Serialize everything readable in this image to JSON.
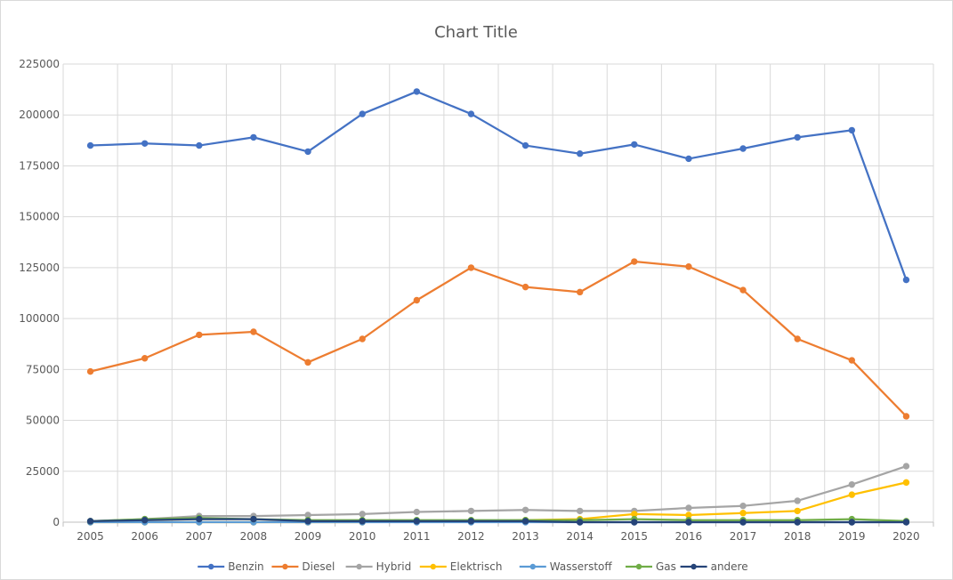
{
  "chart_data": {
    "type": "line",
    "title": "Chart Title",
    "xlabel": "",
    "ylabel": "",
    "ylim": [
      0,
      225000
    ],
    "yticks": [
      "0",
      "25000",
      "50000",
      "75000",
      "100000",
      "125000",
      "150000",
      "175000",
      "200000",
      "225000"
    ],
    "grid": true,
    "legend_position": "bottom",
    "categories": [
      "2005",
      "2006",
      "2007",
      "2008",
      "2009",
      "2010",
      "2011",
      "2012",
      "2013",
      "2014",
      "2015",
      "2016",
      "2017",
      "2018",
      "2019",
      "2020"
    ],
    "series": [
      {
        "name": "Benzin",
        "color": "#4472C4",
        "values": [
          185000,
          186000,
          185000,
          189000,
          182000,
          200500,
          211500,
          200500,
          185000,
          181000,
          185500,
          178500,
          183500,
          189000,
          192500,
          119000
        ]
      },
      {
        "name": "Diesel",
        "color": "#ED7D31",
        "values": [
          74000,
          80500,
          92000,
          93500,
          78500,
          90000,
          109000,
          125000,
          115500,
          113000,
          128000,
          125500,
          114000,
          90000,
          79500,
          52000
        ]
      },
      {
        "name": "Hybrid",
        "color": "#A5A5A5",
        "values": [
          500,
          1500,
          3000,
          3000,
          3500,
          4000,
          5000,
          5500,
          6000,
          5500,
          5500,
          7000,
          8000,
          10500,
          18500,
          27500
        ]
      },
      {
        "name": "Elektrisch",
        "color": "#FFC000",
        "values": [
          0,
          0,
          0,
          0,
          0,
          0,
          500,
          500,
          1000,
          1500,
          4000,
          3500,
          4500,
          5500,
          13500,
          19500
        ]
      },
      {
        "name": "Wasserstoff",
        "color": "#5B9BD5",
        "values": [
          0,
          0,
          0,
          0,
          0,
          0,
          0,
          0,
          0,
          0,
          0,
          0,
          0,
          0,
          0,
          0
        ]
      },
      {
        "name": "Gas",
        "color": "#70AD47",
        "values": [
          500,
          1500,
          2000,
          1500,
          1000,
          1000,
          1000,
          1000,
          1000,
          1000,
          1500,
          1000,
          1000,
          1000,
          1500,
          500
        ]
      },
      {
        "name": "andere",
        "color": "#264478",
        "values": [
          500,
          1000,
          1500,
          1500,
          500,
          500,
          500,
          500,
          500,
          0,
          0,
          0,
          0,
          0,
          0,
          0
        ]
      }
    ]
  }
}
